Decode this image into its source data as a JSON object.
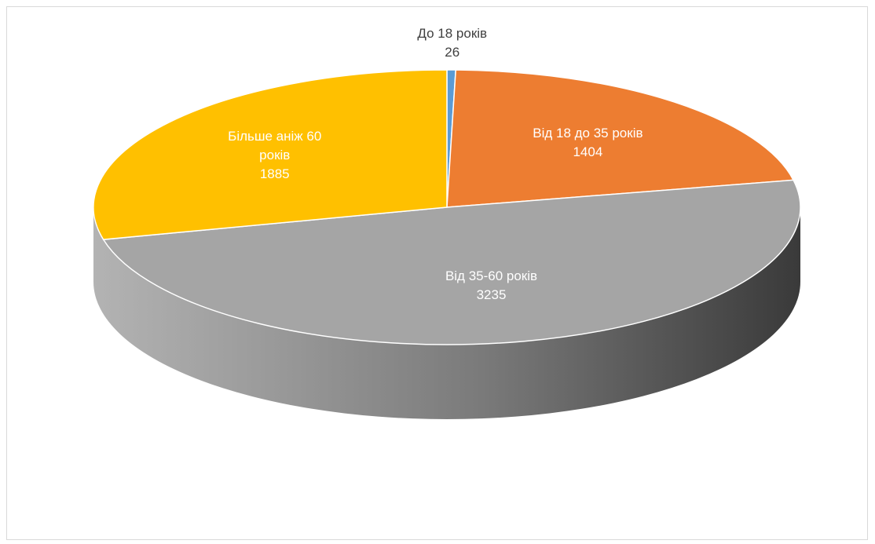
{
  "chart_data": {
    "type": "pie",
    "style": "3d",
    "title": "",
    "categories": [
      "До 18 років",
      "Від 18 до 35 років",
      "Від 35-60 років",
      "Більше аніж 60 років"
    ],
    "values": [
      26,
      1404,
      3235,
      1885
    ],
    "colors": [
      "#5b9bd5",
      "#ed7d31",
      "#a5a5a5",
      "#ffc000"
    ],
    "label_colors": [
      "#404040",
      "#ffffff",
      "#ffffff",
      "#ffffff"
    ],
    "labels": [
      {
        "lines": [
          "До 18 років",
          "26"
        ]
      },
      {
        "lines": [
          "Від 18 до 35 років",
          "1404"
        ]
      },
      {
        "lines": [
          "Від 35-60 років",
          "3235"
        ]
      },
      {
        "lines": [
          "Більше аніж 60",
          "років",
          "1885"
        ]
      }
    ],
    "legend": "none"
  }
}
